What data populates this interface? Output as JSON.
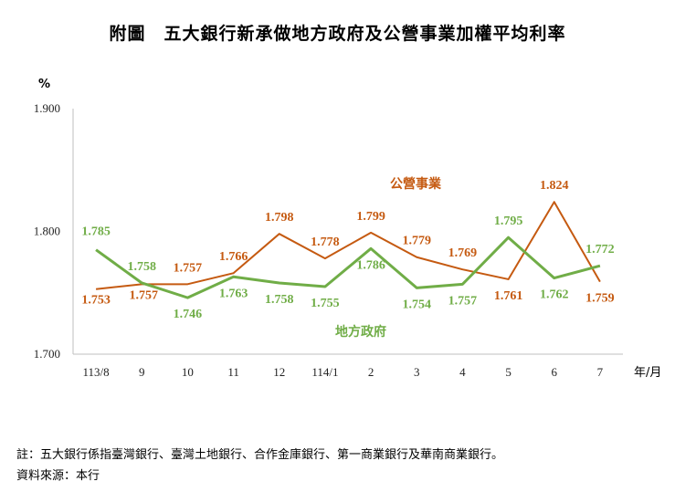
{
  "title": "附圖　五大銀行新承做地方政府及公營事業加權平均利率",
  "notes": {
    "line1": "註：五大銀行係指臺灣銀行、臺灣土地銀行、合作金庫銀行、第一商業銀行及華南商業銀行。",
    "line2": "資料來源：本行"
  },
  "chart_data": {
    "type": "line",
    "title": "附圖　五大銀行新承做地方政府及公營事業加權平均利率",
    "ylabel": "%",
    "xlabel": "年/月",
    "ylim": [
      1.7,
      1.9
    ],
    "yticks": [
      "1.700",
      "1.800",
      "1.900"
    ],
    "grid": false,
    "categories": [
      "113/8",
      "9",
      "10",
      "11",
      "12",
      "114/1",
      "2",
      "3",
      "4",
      "5",
      "6",
      "7"
    ],
    "series": [
      {
        "name": "公營事業",
        "color": "#c55a11",
        "values": [
          1.753,
          1.757,
          1.757,
          1.766,
          1.798,
          1.778,
          1.799,
          1.779,
          1.769,
          1.761,
          1.824,
          1.759
        ],
        "labels": [
          "1.753",
          "1.757",
          "1.757",
          "1.766",
          "1.798",
          "1.778",
          "1.799",
          "1.779",
          "1.769",
          "1.761",
          "1.824",
          "1.759"
        ]
      },
      {
        "name": "地方政府",
        "color": "#70ad47",
        "values": [
          1.785,
          1.758,
          1.746,
          1.763,
          1.758,
          1.755,
          1.786,
          1.754,
          1.757,
          1.795,
          1.762,
          1.772
        ],
        "labels": [
          "1.785",
          "1.758",
          "1.746",
          "1.763",
          "1.758",
          "1.755",
          "1.786",
          "1.754",
          "1.757",
          "1.795",
          "1.762",
          "1.772"
        ]
      }
    ]
  }
}
